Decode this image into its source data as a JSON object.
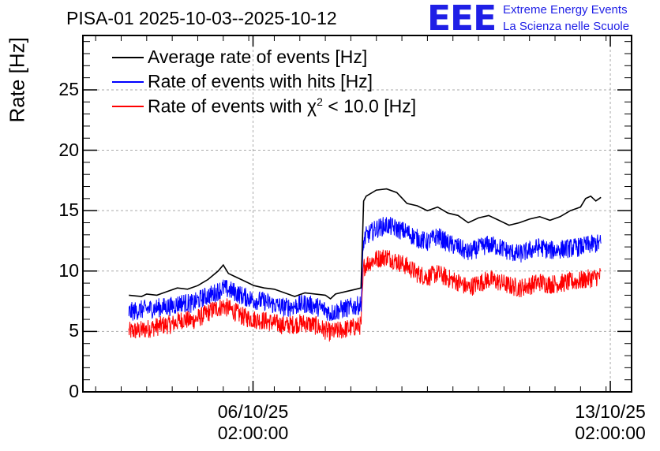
{
  "chart_data": {
    "type": "line",
    "title": "PISA-01 2025-10-03--2025-10-12",
    "ylabel": "Rate [Hz]",
    "xlabel": "",
    "ylim": [
      0,
      29.5
    ],
    "yticks": [
      0,
      5,
      10,
      15,
      20,
      25
    ],
    "ytick_labels": [
      "0",
      "5",
      "10",
      "15",
      "20",
      "25"
    ],
    "x_unit": "days since 2025-10-03 00:00",
    "xlim": [
      -0.25,
      10.5
    ],
    "xticks": [
      {
        "x": 3.0833,
        "date": "06/10/25",
        "time": "02:00:00"
      },
      {
        "x": 10.0833,
        "date": "13/10/25",
        "time": "02:00:00"
      }
    ],
    "grid": true,
    "legend_position": "top-left",
    "legend": [
      {
        "label": "Average rate of events [Hz]",
        "color": "#000000"
      },
      {
        "label": "Rate of events with hits [Hz]",
        "color": "#0000ff"
      },
      {
        "label_pre": "Rate of events with χ",
        "label_sup": "2",
        "label_post": " < 10.0 [Hz]",
        "color": "#ff0000"
      }
    ],
    "series": [
      {
        "name": "Average rate of events [Hz]",
        "color": "#000000",
        "x": [
          0.65,
          0.9,
          1.0,
          1.2,
          1.4,
          1.6,
          1.8,
          2.0,
          2.2,
          2.4,
          2.5,
          2.6,
          2.7,
          2.9,
          3.1,
          3.3,
          3.5,
          3.7,
          3.9,
          4.1,
          4.3,
          4.5,
          4.6,
          4.7,
          4.9,
          5.1,
          5.2,
          5.25,
          5.3,
          5.5,
          5.7,
          5.9,
          6.1,
          6.3,
          6.5,
          6.7,
          6.9,
          7.1,
          7.3,
          7.5,
          7.7,
          7.9,
          8.1,
          8.3,
          8.5,
          8.7,
          8.9,
          9.1,
          9.3,
          9.5,
          9.6,
          9.7,
          9.8,
          9.9
        ],
        "y": [
          8.0,
          7.9,
          8.1,
          8.0,
          8.3,
          8.6,
          8.5,
          8.8,
          9.3,
          10.0,
          10.5,
          9.8,
          9.6,
          9.2,
          8.8,
          8.6,
          8.5,
          8.2,
          7.9,
          8.2,
          8.1,
          8.0,
          7.7,
          8.1,
          8.3,
          8.5,
          8.6,
          15.8,
          16.2,
          16.7,
          16.8,
          16.5,
          15.6,
          15.4,
          15.0,
          15.3,
          14.8,
          14.6,
          14.0,
          14.4,
          14.6,
          14.2,
          13.8,
          14.0,
          14.3,
          14.5,
          14.2,
          14.5,
          15.0,
          15.3,
          16.0,
          16.2,
          15.8,
          16.1
        ]
      },
      {
        "name": "Rate of events with hits [Hz]",
        "color": "#0000ff",
        "x": [
          0.65,
          0.9,
          1.1,
          1.3,
          1.5,
          1.7,
          1.9,
          2.1,
          2.3,
          2.5,
          2.7,
          2.9,
          3.1,
          3.3,
          3.5,
          3.7,
          3.9,
          4.1,
          4.3,
          4.5,
          4.6,
          4.8,
          5.0,
          5.2,
          5.25,
          5.3,
          5.5,
          5.7,
          5.9,
          6.1,
          6.3,
          6.5,
          6.7,
          6.9,
          7.1,
          7.3,
          7.5,
          7.7,
          7.9,
          8.1,
          8.3,
          8.5,
          8.7,
          8.9,
          9.1,
          9.3,
          9.5,
          9.7,
          9.9
        ],
        "y": [
          6.6,
          6.8,
          6.9,
          7.0,
          7.1,
          7.4,
          7.3,
          7.8,
          8.1,
          8.6,
          8.3,
          7.9,
          7.6,
          7.5,
          7.2,
          7.0,
          7.1,
          7.3,
          7.1,
          6.8,
          6.5,
          6.8,
          7.0,
          7.2,
          12.5,
          12.9,
          13.5,
          13.8,
          13.5,
          13.2,
          12.7,
          12.4,
          12.9,
          12.3,
          12.0,
          11.5,
          11.9,
          12.2,
          12.0,
          11.6,
          11.4,
          11.7,
          12.0,
          11.7,
          11.8,
          11.9,
          12.0,
          12.2,
          12.3
        ],
        "noise": 0.8
      },
      {
        "name": "Rate of events with χ² < 10.0 [Hz]",
        "color": "#ff0000",
        "x": [
          0.65,
          0.9,
          1.1,
          1.3,
          1.5,
          1.7,
          1.9,
          2.1,
          2.3,
          2.5,
          2.7,
          2.9,
          3.1,
          3.3,
          3.5,
          3.7,
          3.9,
          4.1,
          4.3,
          4.5,
          4.6,
          4.8,
          5.0,
          5.2,
          5.25,
          5.3,
          5.5,
          5.7,
          5.9,
          6.1,
          6.3,
          6.5,
          6.7,
          6.9,
          7.1,
          7.3,
          7.5,
          7.7,
          7.9,
          8.1,
          8.3,
          8.5,
          8.7,
          8.9,
          9.1,
          9.3,
          9.5,
          9.7,
          9.9
        ],
        "y": [
          5.0,
          5.1,
          5.3,
          5.5,
          5.6,
          6.0,
          5.9,
          6.3,
          6.8,
          7.1,
          6.7,
          6.2,
          6.0,
          5.9,
          5.7,
          5.5,
          5.6,
          5.7,
          5.5,
          5.1,
          4.9,
          5.1,
          5.3,
          5.5,
          10.3,
          10.6,
          11.0,
          11.2,
          10.8,
          10.4,
          9.8,
          9.5,
          9.8,
          9.4,
          9.1,
          8.6,
          9.0,
          9.3,
          9.1,
          8.8,
          8.6,
          8.8,
          9.1,
          8.9,
          9.0,
          9.1,
          9.2,
          9.4,
          9.6
        ],
        "noise": 0.8
      }
    ]
  },
  "branding": {
    "logo_text": "EEE",
    "org_line1": "Extreme Energy Events",
    "org_line2": "La Scienza nelle Scuole"
  }
}
